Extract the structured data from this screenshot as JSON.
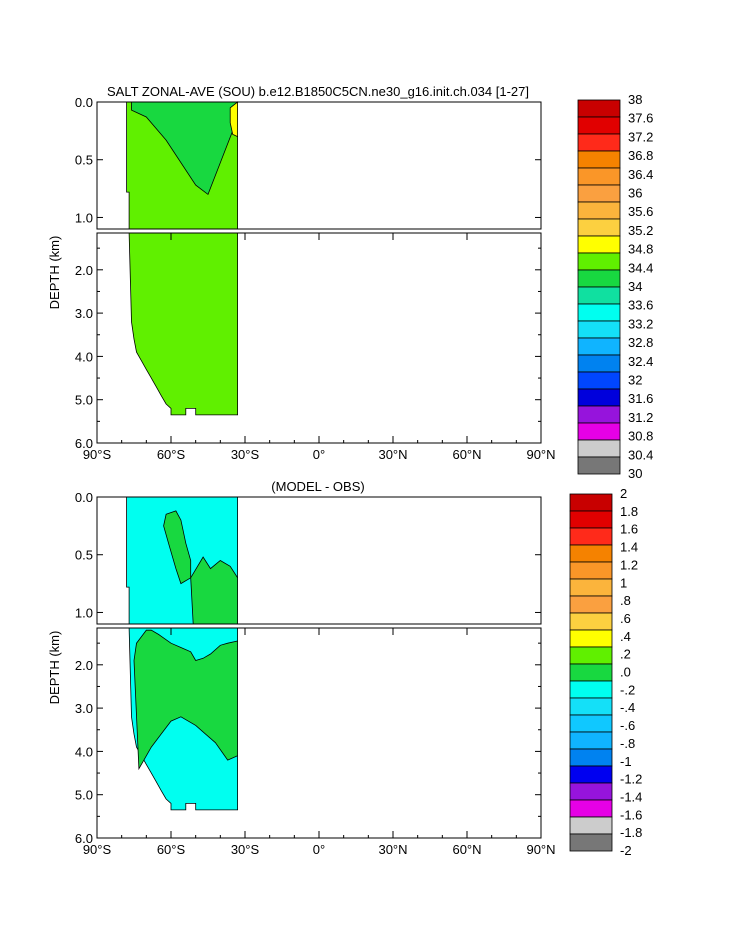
{
  "chart_data": [
    {
      "type": "heatmap",
      "title": "SALT ZONAL-AVE (SOU) b.e12.B1850C5CN.ne30_g16.init.ch.034 [1-27]",
      "ylabel": "DEPTH (km)",
      "xlabel": "",
      "x_ticks": [
        "90°S",
        "60°S",
        "30°S",
        "0°",
        "30°N",
        "60°N",
        "90°N"
      ],
      "x_values": [
        -90,
        -60,
        -30,
        0,
        30,
        60,
        90
      ],
      "xlim": [
        -90,
        90
      ],
      "y_ticks_upper": [
        "0.0",
        "0.5",
        "1.0"
      ],
      "y_ticks_upper_values": [
        0,
        0.5,
        1.0
      ],
      "y_ticks_lower": [
        "2.0",
        "3.0",
        "4.0",
        "5.0",
        "6.0"
      ],
      "y_ticks_lower_values": [
        2,
        3,
        4,
        5,
        6
      ],
      "ylim_upper": [
        0,
        1.1
      ],
      "ylim_lower": [
        1.15,
        6.0
      ],
      "colorbar_labels": [
        "38",
        "37.6",
        "37.2",
        "36.8",
        "36.4",
        "36",
        "35.6",
        "35.2",
        "34.8",
        "34.4",
        "34",
        "33.6",
        "33.2",
        "32.8",
        "32.4",
        "32",
        "31.6",
        "31.2",
        "30.8",
        "30.4",
        "30"
      ],
      "colorbar_colors": [
        "#c80000",
        "#e10000",
        "#ff2a1a",
        "#f58200",
        "#fa9628",
        "#faa040",
        "#fbb43c",
        "#fcd040",
        "#ffff00",
        "#60f000",
        "#18d840",
        "#10e0a0",
        "#00fff0",
        "#14e0f8",
        "#10b4ff",
        "#0082f0",
        "#0046ff",
        "#0000dc",
        "#9614dc",
        "#e600e6",
        "#cccccc",
        "#777777"
      ],
      "regions_upper": [
        {
          "name": "fill-34.4-34.8",
          "color": "#60f000",
          "x": [
            -78,
            -78,
            -77,
            -77,
            -33,
            -33
          ],
          "y": [
            0,
            0.78,
            0.78,
            1.1,
            1.1,
            0
          ]
        },
        {
          "name": "fill-34.0-34.4",
          "color": "#18d840",
          "x": [
            -76,
            -70,
            -60,
            -50,
            -44,
            -40,
            -35,
            -33,
            -33,
            -45,
            -50,
            -62,
            -70,
            -76
          ],
          "y": [
            0,
            0,
            0,
            0,
            0,
            0,
            0,
            0,
            0.14,
            0.8,
            0.72,
            0.33,
            0.13,
            0.07
          ]
        },
        {
          "name": "fill-34.8-35.2",
          "color": "#ffff00",
          "x": [
            -36,
            -33,
            -33,
            -35,
            -36
          ],
          "y": [
            0.05,
            0,
            0.3,
            0.28,
            0.18
          ]
        }
      ],
      "regions_lower": [
        {
          "name": "fill-34.4-34.8",
          "color": "#60f000",
          "x": [
            -77,
            -76,
            -75,
            -74,
            -72,
            -70,
            -68,
            -66,
            -64,
            -62,
            -60,
            -60,
            -54,
            -54,
            -50,
            -50,
            -33,
            -33
          ],
          "y": [
            1.15,
            3.2,
            3.6,
            3.9,
            4.1,
            4.3,
            4.5,
            4.7,
            4.9,
            5.1,
            5.2,
            5.35,
            5.35,
            5.2,
            5.2,
            5.35,
            5.35,
            1.15
          ]
        }
      ]
    },
    {
      "type": "heatmap",
      "title": "(MODEL - OBS)",
      "ylabel": "DEPTH (km)",
      "xlabel": "",
      "x_ticks": [
        "90°S",
        "60°S",
        "30°S",
        "0°",
        "30°N",
        "60°N",
        "90°N"
      ],
      "x_values": [
        -90,
        -60,
        -30,
        0,
        30,
        60,
        90
      ],
      "xlim": [
        -90,
        90
      ],
      "y_ticks_upper": [
        "0.0",
        "0.5",
        "1.0"
      ],
      "y_ticks_upper_values": [
        0,
        0.5,
        1.0
      ],
      "y_ticks_lower": [
        "2.0",
        "3.0",
        "4.0",
        "5.0",
        "6.0"
      ],
      "y_ticks_lower_values": [
        2,
        3,
        4,
        5,
        6
      ],
      "ylim_upper": [
        0,
        1.1
      ],
      "ylim_lower": [
        1.15,
        6.0
      ],
      "colorbar_labels": [
        "2",
        "1.8",
        "1.6",
        "1.4",
        "1.2",
        "1",
        ".8",
        ".6",
        ".4",
        ".2",
        ".0",
        "-.2",
        "-.4",
        "-.6",
        "-.8",
        "-1",
        "-1.2",
        "-1.4",
        "-1.6",
        "-1.8",
        "-2"
      ],
      "colorbar_colors": [
        "#c80000",
        "#e10000",
        "#ff2a1a",
        "#f58200",
        "#fa9628",
        "#fbb43c",
        "#faa040",
        "#fcd040",
        "#ffff00",
        "#60f000",
        "#18d840",
        "#00fff0",
        "#14e0f8",
        "#10c8ff",
        "#10b4ff",
        "#0082f0",
        "#0000f0",
        "#9614dc",
        "#e600e6",
        "#cccccc",
        "#777777"
      ],
      "regions_upper": [
        {
          "name": "fill-neg0.2-0.0",
          "color": "#00fff0",
          "x": [
            -78,
            -78,
            -77,
            -77,
            -33,
            -33
          ],
          "y": [
            0,
            0.78,
            0.78,
            1.1,
            1.1,
            0
          ]
        },
        {
          "name": "fill-0.0-0.2",
          "color": "#18d840",
          "x": [
            -62,
            -58,
            -56,
            -54,
            -52,
            -52,
            -56,
            -58,
            -61,
            -63
          ],
          "y": [
            0.15,
            0.12,
            0.2,
            0.4,
            0.55,
            0.7,
            0.75,
            0.62,
            0.4,
            0.25
          ]
        },
        {
          "name": "fill-0.0-0.2",
          "color": "#18d840",
          "x": [
            -52,
            -47,
            -44,
            -40,
            -36,
            -33,
            -33,
            -51
          ],
          "y": [
            0.7,
            0.52,
            0.62,
            0.55,
            0.6,
            0.7,
            1.1,
            1.1
          ]
        }
      ],
      "regions_lower": [
        {
          "name": "fill-neg0.2-0.0",
          "color": "#00fff0",
          "x": [
            -77,
            -76,
            -75,
            -74,
            -72,
            -70,
            -68,
            -66,
            -64,
            -62,
            -60,
            -60,
            -54,
            -54,
            -50,
            -50,
            -33,
            -33
          ],
          "y": [
            1.15,
            3.2,
            3.6,
            3.9,
            4.1,
            4.3,
            4.5,
            4.7,
            4.9,
            5.1,
            5.2,
            5.35,
            5.35,
            5.2,
            5.2,
            5.35,
            5.35,
            1.15
          ]
        },
        {
          "name": "fill-0.0-0.2",
          "color": "#18d840",
          "x": [
            -75,
            -74,
            -70,
            -68,
            -65,
            -60,
            -56,
            -52,
            -50,
            -47,
            -44,
            -40,
            -37,
            -33,
            -33,
            -37,
            -42,
            -46,
            -50,
            -56,
            -60,
            -64,
            -68,
            -71,
            -73
          ],
          "y": [
            1.9,
            1.5,
            1.2,
            1.2,
            1.3,
            1.5,
            1.6,
            1.7,
            1.9,
            1.85,
            1.75,
            1.55,
            1.5,
            1.45,
            4.1,
            4.2,
            3.8,
            3.6,
            3.4,
            3.2,
            3.3,
            3.6,
            3.9,
            4.2,
            4.4
          ]
        }
      ]
    }
  ]
}
